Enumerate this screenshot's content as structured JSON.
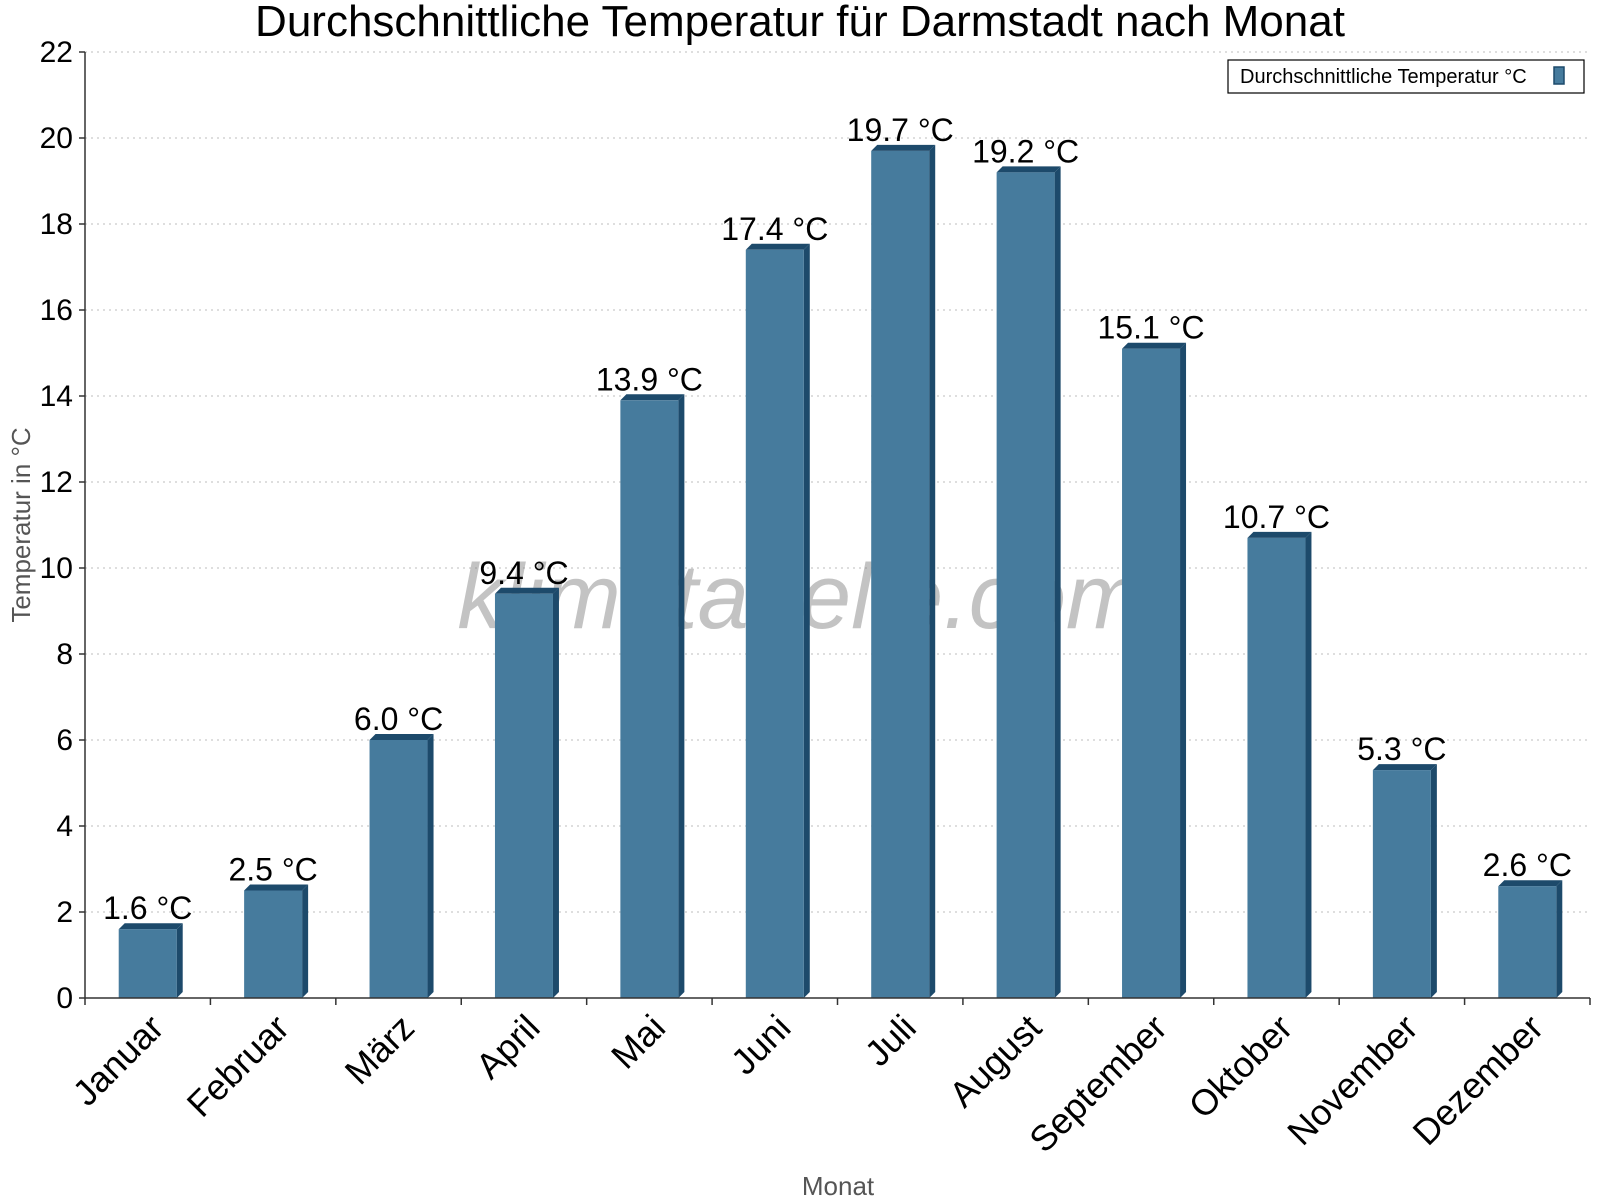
{
  "chart_data": {
    "type": "bar",
    "title": "Durchschnittliche Temperatur für Darmstadt nach Monat",
    "xlabel": "Monat",
    "ylabel": "Temperatur in °C",
    "categories": [
      "Januar",
      "Februar",
      "März",
      "April",
      "Mai",
      "Juni",
      "Juli",
      "August",
      "September",
      "Oktober",
      "November",
      "Dezember"
    ],
    "series": [
      {
        "name": "Durchschnittliche Temperatur °C",
        "values": [
          1.6,
          2.5,
          6.0,
          9.4,
          13.9,
          17.4,
          19.7,
          19.2,
          15.1,
          10.7,
          5.3,
          2.6
        ],
        "labels": [
          "1.6 °C",
          "2.5 °C",
          "6.0 °C",
          "9.4 °C",
          "13.9 °C",
          "17.4 °C",
          "19.7 °C",
          "19.2 °C",
          "15.1 °C",
          "10.7 °C",
          "5.3 °C",
          "2.6 °C"
        ]
      }
    ],
    "ylim": [
      0,
      22
    ],
    "yticks": [
      0,
      2,
      4,
      6,
      8,
      10,
      12,
      14,
      16,
      18,
      20,
      22
    ],
    "grid": true,
    "legend_position": "top-right",
    "watermark": "klimatabelle.com",
    "colors": {
      "bar": "#467b9d",
      "bar_side": "#1d4a6b",
      "bar_top": "#1d4a6b"
    }
  }
}
